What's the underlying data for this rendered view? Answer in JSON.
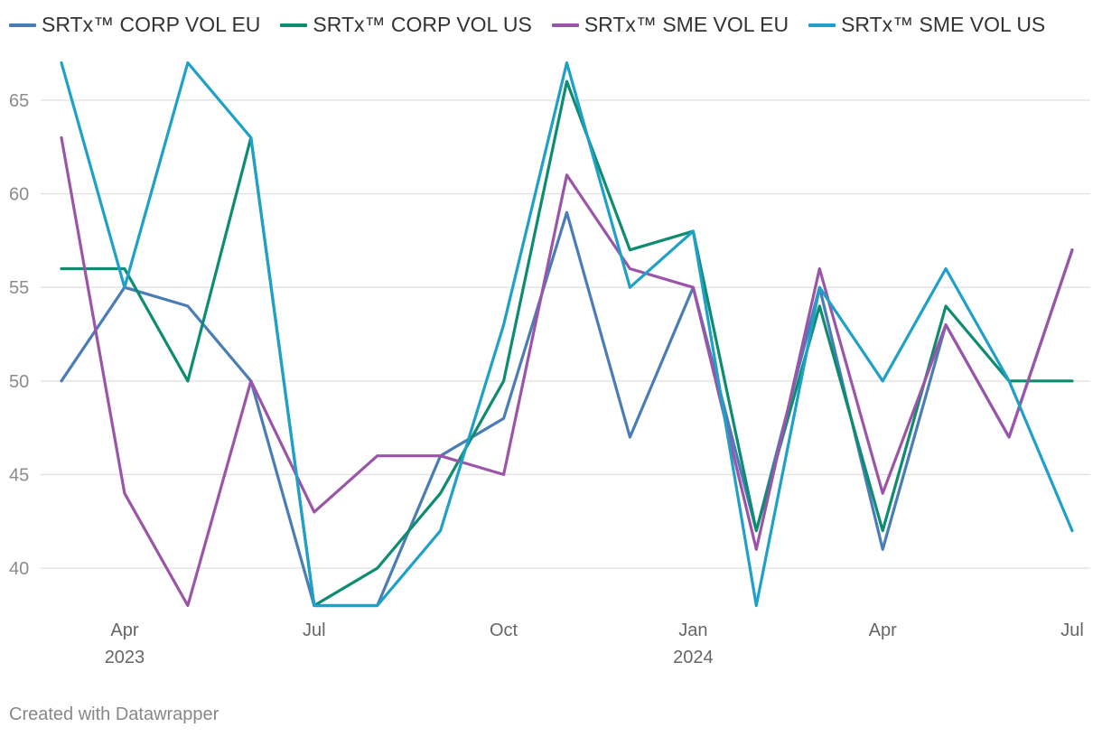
{
  "chart_data": {
    "type": "line",
    "title": "",
    "xlabel": "",
    "ylabel": "",
    "x": [
      "2023-03",
      "2023-04",
      "2023-05",
      "2023-06",
      "2023-07",
      "2023-08",
      "2023-09",
      "2023-10",
      "2023-11",
      "2023-12",
      "2024-01",
      "2024-02",
      "2024-03",
      "2024-04",
      "2024-05",
      "2024-06",
      "2024-07"
    ],
    "ylim": [
      38,
      67
    ],
    "yticks": [
      40,
      45,
      50,
      55,
      60,
      65
    ],
    "xticks": [
      {
        "x": "2023-04",
        "label": "Apr",
        "sublabel": "2023"
      },
      {
        "x": "2023-07",
        "label": "Jul",
        "sublabel": ""
      },
      {
        "x": "2023-10",
        "label": "Oct",
        "sublabel": ""
      },
      {
        "x": "2024-01",
        "label": "Jan",
        "sublabel": "2024"
      },
      {
        "x": "2024-04",
        "label": "Apr",
        "sublabel": ""
      },
      {
        "x": "2024-07",
        "label": "Jul",
        "sublabel": ""
      }
    ],
    "grid": "horizontal",
    "legend": "top",
    "series": [
      {
        "name": "SRTx™ CORP VOL EU",
        "color": "#4a7cb5",
        "values": [
          50,
          55,
          54,
          50,
          38,
          38,
          46,
          48,
          59,
          47,
          55,
          42,
          55,
          41,
          53,
          47,
          57
        ]
      },
      {
        "name": "SRTx™ CORP VOL US",
        "color": "#0e8c6f",
        "values": [
          56,
          56,
          50,
          63,
          38,
          40,
          44,
          50,
          66,
          57,
          58,
          42,
          54,
          42,
          54,
          50,
          50
        ]
      },
      {
        "name": "SRTx™ SME VOL EU",
        "color": "#9b55a8",
        "values": [
          63,
          44,
          38,
          50,
          43,
          46,
          46,
          45,
          61,
          56,
          55,
          41,
          56,
          44,
          53,
          47,
          57
        ]
      },
      {
        "name": "SRTx™ SME VOL US",
        "color": "#1fa0c8",
        "values": [
          67,
          55,
          67,
          63,
          38,
          38,
          42,
          53,
          67,
          55,
          58,
          38,
          55,
          50,
          56,
          50,
          42
        ]
      }
    ]
  },
  "footer": {
    "credit": "Created with Datawrapper"
  }
}
